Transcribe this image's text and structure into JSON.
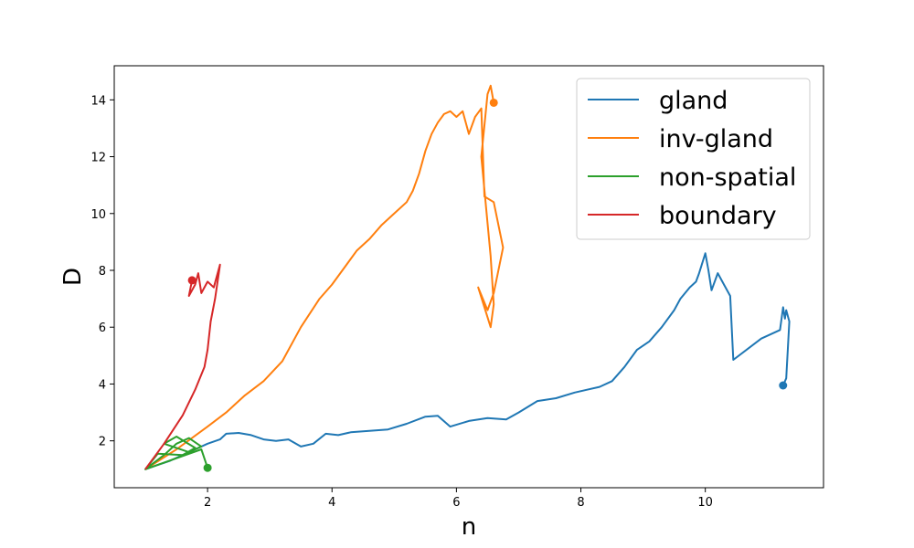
{
  "chart_data": {
    "type": "line",
    "title": "",
    "xlabel": "n",
    "ylabel": "D",
    "xlim": [
      0.5,
      11.9
    ],
    "ylim": [
      0.35,
      15.2
    ],
    "xticks": [
      2,
      4,
      6,
      8,
      10
    ],
    "yticks": [
      2,
      4,
      6,
      8,
      10,
      12,
      14
    ],
    "grid": false,
    "legend_position": "top-right",
    "series": [
      {
        "name": "gland",
        "color": "#1f77b4",
        "end_marker": true,
        "points": [
          [
            1.0,
            1.0
          ],
          [
            1.2,
            1.15
          ],
          [
            1.4,
            1.3
          ],
          [
            1.6,
            1.5
          ],
          [
            1.8,
            1.7
          ],
          [
            2.0,
            1.9
          ],
          [
            2.2,
            2.05
          ],
          [
            2.3,
            2.25
          ],
          [
            2.5,
            2.28
          ],
          [
            2.7,
            2.2
          ],
          [
            2.9,
            2.05
          ],
          [
            3.1,
            2.0
          ],
          [
            3.3,
            2.05
          ],
          [
            3.5,
            1.8
          ],
          [
            3.7,
            1.9
          ],
          [
            3.9,
            2.25
          ],
          [
            4.1,
            2.2
          ],
          [
            4.3,
            2.3
          ],
          [
            4.6,
            2.35
          ],
          [
            4.9,
            2.4
          ],
          [
            5.2,
            2.6
          ],
          [
            5.5,
            2.85
          ],
          [
            5.7,
            2.88
          ],
          [
            5.9,
            2.5
          ],
          [
            6.2,
            2.7
          ],
          [
            6.5,
            2.8
          ],
          [
            6.8,
            2.75
          ],
          [
            7.0,
            3.0
          ],
          [
            7.3,
            3.4
          ],
          [
            7.6,
            3.5
          ],
          [
            7.9,
            3.7
          ],
          [
            8.1,
            3.8
          ],
          [
            8.3,
            3.9
          ],
          [
            8.5,
            4.1
          ],
          [
            8.7,
            4.6
          ],
          [
            8.9,
            5.2
          ],
          [
            9.1,
            5.5
          ],
          [
            9.3,
            6.0
          ],
          [
            9.5,
            6.6
          ],
          [
            9.6,
            7.0
          ],
          [
            9.75,
            7.4
          ],
          [
            9.85,
            7.6
          ],
          [
            9.9,
            7.9
          ],
          [
            10.0,
            8.6
          ],
          [
            10.05,
            8.0
          ],
          [
            10.1,
            7.3
          ],
          [
            10.2,
            7.9
          ],
          [
            10.3,
            7.5
          ],
          [
            10.4,
            7.1
          ],
          [
            10.45,
            4.85
          ],
          [
            10.9,
            5.6
          ],
          [
            11.2,
            5.9
          ],
          [
            11.25,
            6.7
          ],
          [
            11.28,
            6.3
          ],
          [
            11.3,
            6.6
          ],
          [
            11.35,
            6.2
          ],
          [
            11.3,
            4.2
          ],
          [
            11.25,
            3.95
          ]
        ]
      },
      {
        "name": "inv-gland",
        "color": "#ff7f0e",
        "end_marker": true,
        "points": [
          [
            1.0,
            1.0
          ],
          [
            1.5,
            1.7
          ],
          [
            2.0,
            2.5
          ],
          [
            2.3,
            3.0
          ],
          [
            2.6,
            3.6
          ],
          [
            2.9,
            4.1
          ],
          [
            3.2,
            4.8
          ],
          [
            3.5,
            6.0
          ],
          [
            3.8,
            7.0
          ],
          [
            4.0,
            7.5
          ],
          [
            4.2,
            8.1
          ],
          [
            4.4,
            8.7
          ],
          [
            4.6,
            9.1
          ],
          [
            4.8,
            9.6
          ],
          [
            5.0,
            10.0
          ],
          [
            5.2,
            10.4
          ],
          [
            5.3,
            10.8
          ],
          [
            5.4,
            11.4
          ],
          [
            5.5,
            12.2
          ],
          [
            5.6,
            12.8
          ],
          [
            5.7,
            13.2
          ],
          [
            5.8,
            13.5
          ],
          [
            5.9,
            13.6
          ],
          [
            6.0,
            13.4
          ],
          [
            6.1,
            13.6
          ],
          [
            6.2,
            12.8
          ],
          [
            6.3,
            13.4
          ],
          [
            6.4,
            13.7
          ],
          [
            6.45,
            10.6
          ],
          [
            6.6,
            10.4
          ],
          [
            6.75,
            8.8
          ],
          [
            6.6,
            7.2
          ],
          [
            6.5,
            6.6
          ],
          [
            6.35,
            7.4
          ],
          [
            6.55,
            6.0
          ],
          [
            6.6,
            6.8
          ],
          [
            6.55,
            8.5
          ],
          [
            6.4,
            12.0
          ],
          [
            6.5,
            14.2
          ],
          [
            6.55,
            14.5
          ],
          [
            6.6,
            13.9
          ]
        ]
      },
      {
        "name": "non-spatial",
        "color": "#2ca02c",
        "end_marker": true,
        "points": [
          [
            1.0,
            1.0
          ],
          [
            1.3,
            1.5
          ],
          [
            1.5,
            1.9
          ],
          [
            1.7,
            2.1
          ],
          [
            1.9,
            1.8
          ],
          [
            1.7,
            1.6
          ],
          [
            1.5,
            1.75
          ],
          [
            1.3,
            1.9
          ],
          [
            1.5,
            2.15
          ],
          [
            1.8,
            1.75
          ],
          [
            1.6,
            1.5
          ],
          [
            1.2,
            1.55
          ],
          [
            1.0,
            1.0
          ],
          [
            1.9,
            1.7
          ],
          [
            2.0,
            1.05
          ]
        ]
      },
      {
        "name": "boundary",
        "color": "#d62728",
        "end_marker": true,
        "points": [
          [
            1.0,
            1.0
          ],
          [
            1.3,
            1.9
          ],
          [
            1.6,
            2.9
          ],
          [
            1.8,
            3.8
          ],
          [
            1.95,
            4.6
          ],
          [
            2.0,
            5.2
          ],
          [
            2.05,
            6.2
          ],
          [
            2.12,
            7.0
          ],
          [
            2.18,
            7.9
          ],
          [
            2.2,
            8.2
          ],
          [
            2.1,
            7.4
          ],
          [
            2.0,
            7.6
          ],
          [
            1.9,
            7.2
          ],
          [
            1.85,
            7.9
          ],
          [
            1.8,
            7.5
          ],
          [
            1.7,
            7.1
          ],
          [
            1.75,
            7.65
          ]
        ]
      }
    ]
  }
}
